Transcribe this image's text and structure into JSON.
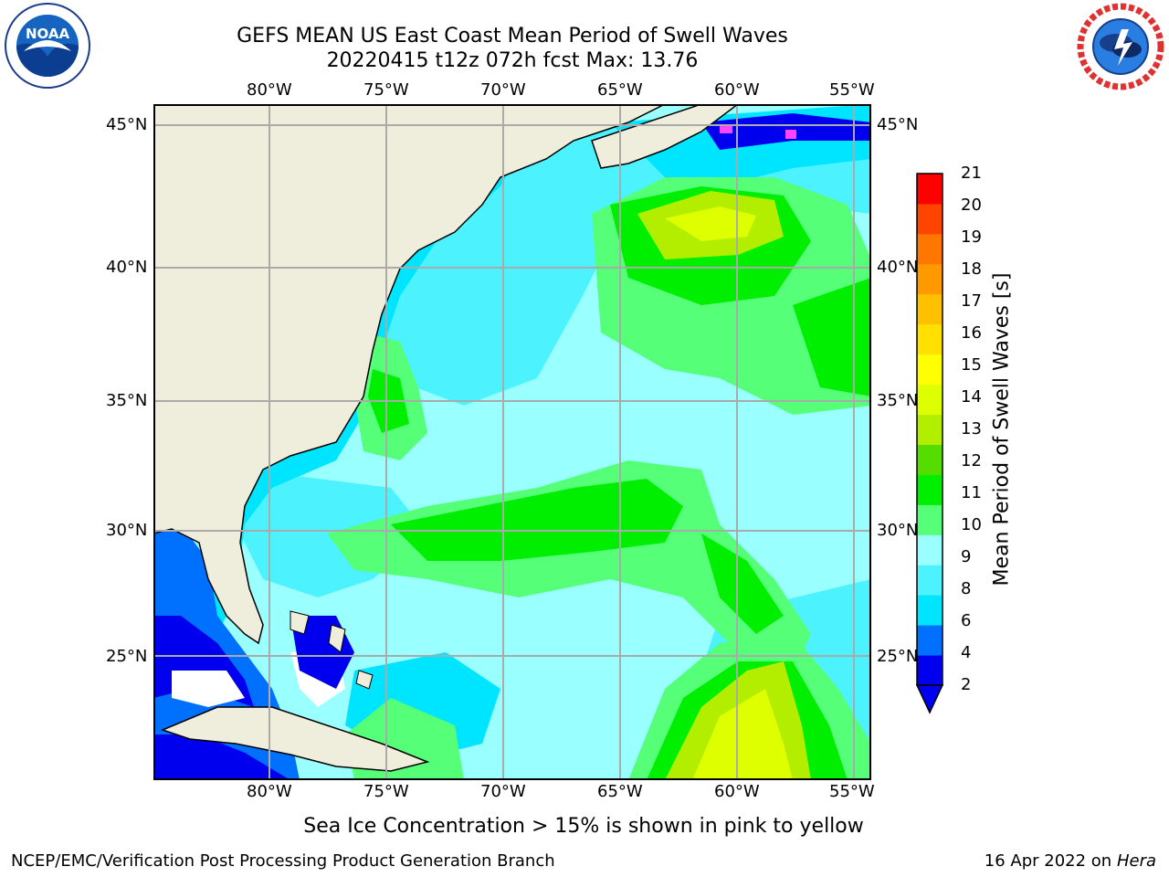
{
  "title_line1": "GEFS MEAN US East Coast Mean Period of Swell Waves",
  "title_line2": "20220415 t12z 072h fcst   Max: 13.76",
  "lon_labels": [
    "80°W",
    "75°W",
    "70°W",
    "65°W",
    "60°W",
    "55°W"
  ],
  "lat_labels": [
    "45°N",
    "40°N",
    "35°N",
    "30°N",
    "25°N"
  ],
  "colorbar": {
    "title": "Mean Period of Swell Waves [s]",
    "ticks": [
      "21",
      "20",
      "19",
      "18",
      "17",
      "16",
      "15",
      "14",
      "13",
      "12",
      "11",
      "10",
      "9",
      "8",
      "6",
      "4",
      "2"
    ],
    "colors": [
      "#0000ee",
      "#0070ff",
      "#00e5ff",
      "#4df2ff",
      "#99ffff",
      "#55ff77",
      "#00ee00",
      "#55dd00",
      "#b3ee00",
      "#ddff00",
      "#ffff00",
      "#ffe000",
      "#ffc000",
      "#ff9900",
      "#ff7700",
      "#ff4400",
      "#ff0000"
    ]
  },
  "map_colors": {
    "land": "#efeddb",
    "deep_blue": "#0000ee",
    "blue": "#0070ff",
    "cyan": "#00e5ff",
    "light_cyan": "#4df2ff",
    "pale_cyan": "#99ffff",
    "light_green": "#55ff77",
    "green": "#00ee00",
    "yellow_green": "#b3ee00",
    "yellow": "#ddff00",
    "ice": "#ff44ff"
  },
  "sea_ice_note": "Sea Ice Concentration > 15% is shown in pink to yellow",
  "footer_left": "NCEP/EMC/Verification Post Processing Product Generation Branch",
  "footer_right_date": "16 Apr 2022 on ",
  "footer_right_host": "Hera",
  "logos": {
    "left_text": "NOAA",
    "left_ring": "NATIONAL OCEANIC AND ATMOSPHERIC ADMINISTRATION",
    "right_ring": "NATIONAL WEATHER SERVICE"
  }
}
